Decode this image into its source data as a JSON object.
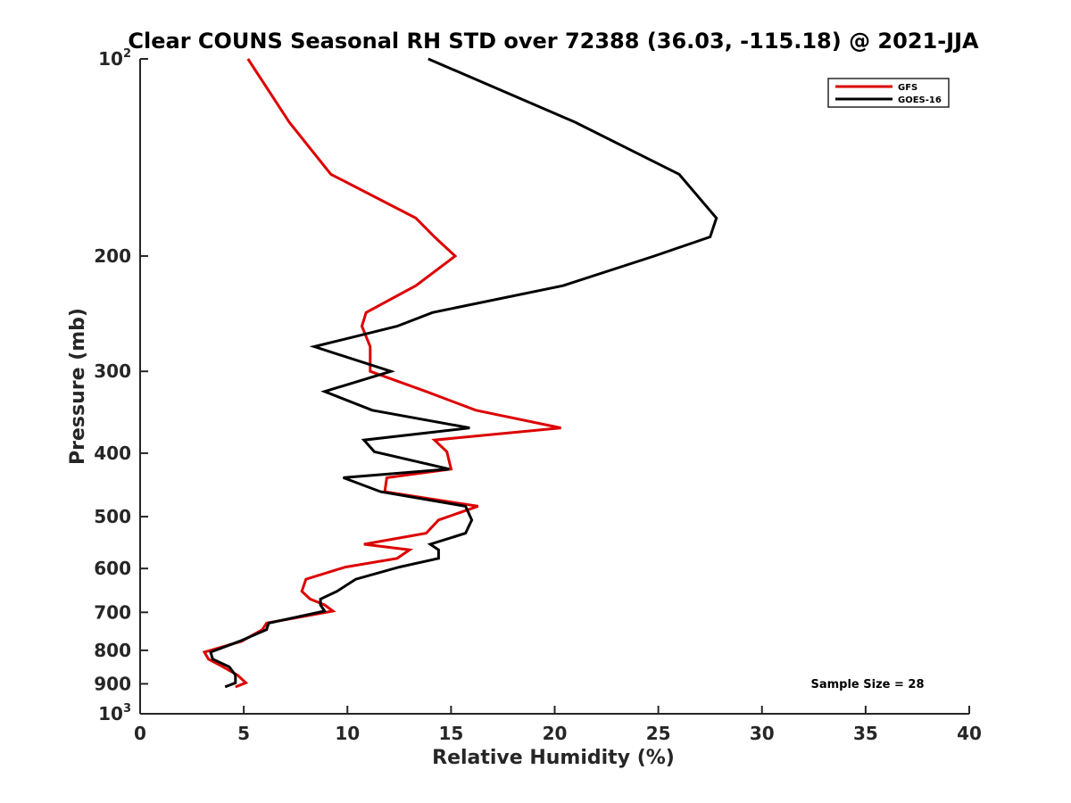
{
  "chart_data": {
    "type": "line",
    "title": "Clear COUNS Seasonal RH STD over 72388 (36.03, -115.18) @ 2021-JJA",
    "xlabel": "Relative Humidity (%)",
    "ylabel": "Pressure (mb)",
    "xlim": [
      0,
      40
    ],
    "ylim": [
      100,
      1000
    ],
    "yscale": "log",
    "y_reversed": true,
    "x_ticks": [
      0,
      5,
      10,
      15,
      20,
      25,
      30,
      35,
      40
    ],
    "x_tick_labels": [
      "0",
      "5",
      "10",
      "15",
      "20",
      "25",
      "30",
      "35",
      "40"
    ],
    "y_ticks": [
      {
        "value": 100,
        "label": "10",
        "sup": "2"
      },
      {
        "value": 200,
        "label": "200",
        "sup": ""
      },
      {
        "value": 300,
        "label": "300",
        "sup": ""
      },
      {
        "value": 400,
        "label": "400",
        "sup": ""
      },
      {
        "value": 500,
        "label": "500",
        "sup": ""
      },
      {
        "value": 600,
        "label": "600",
        "sup": ""
      },
      {
        "value": 700,
        "label": "700",
        "sup": ""
      },
      {
        "value": 800,
        "label": "800",
        "sup": ""
      },
      {
        "value": 900,
        "label": "900",
        "sup": ""
      },
      {
        "value": 1000,
        "label": "10",
        "sup": "3"
      }
    ],
    "legend_position": "top-right",
    "annotation": "Sample Size = 28",
    "series": [
      {
        "name": "GFS",
        "color": "#dd0000",
        "points": [
          [
            5.2,
            100
          ],
          [
            7.2,
            125
          ],
          [
            9.2,
            150
          ],
          [
            13.3,
            175
          ],
          [
            14.2,
            187
          ],
          [
            15.2,
            200
          ],
          [
            13.3,
            222
          ],
          [
            10.9,
            244
          ],
          [
            10.7,
            256
          ],
          [
            11.1,
            275
          ],
          [
            11.1,
            300
          ],
          [
            13.8,
            322
          ],
          [
            16.2,
            344
          ],
          [
            20.3,
            366
          ],
          [
            14.2,
            382
          ],
          [
            14.8,
            398
          ],
          [
            15.0,
            423
          ],
          [
            11.9,
            436
          ],
          [
            11.8,
            458
          ],
          [
            16.3,
            482
          ],
          [
            14.4,
            506
          ],
          [
            13.8,
            530
          ],
          [
            10.8,
            551
          ],
          [
            13.0,
            562
          ],
          [
            12.4,
            579
          ],
          [
            9.9,
            597
          ],
          [
            8.0,
            623
          ],
          [
            7.8,
            650
          ],
          [
            8.2,
            668
          ],
          [
            8.9,
            682
          ],
          [
            9.3,
            697
          ],
          [
            6.1,
            727
          ],
          [
            5.9,
            744
          ],
          [
            4.9,
            775
          ],
          [
            3.1,
            805
          ],
          [
            3.3,
            825
          ],
          [
            4.0,
            848
          ],
          [
            4.7,
            873
          ],
          [
            5.1,
            897
          ],
          [
            4.6,
            910
          ]
        ]
      },
      {
        "name": "GOES-16",
        "color": "#000000",
        "points": [
          [
            13.9,
            100
          ],
          [
            21.0,
            125
          ],
          [
            26.0,
            150
          ],
          [
            27.8,
            175
          ],
          [
            27.5,
            187
          ],
          [
            24.8,
            200
          ],
          [
            20.4,
            222
          ],
          [
            14.1,
            244
          ],
          [
            12.4,
            256
          ],
          [
            8.4,
            275
          ],
          [
            12.1,
            300
          ],
          [
            8.9,
            322
          ],
          [
            11.2,
            344
          ],
          [
            15.9,
            366
          ],
          [
            10.8,
            382
          ],
          [
            11.3,
            398
          ],
          [
            14.9,
            423
          ],
          [
            9.8,
            436
          ],
          [
            11.6,
            458
          ],
          [
            15.7,
            482
          ],
          [
            16.0,
            506
          ],
          [
            15.7,
            530
          ],
          [
            14.0,
            551
          ],
          [
            14.4,
            562
          ],
          [
            14.4,
            579
          ],
          [
            12.5,
            597
          ],
          [
            10.4,
            623
          ],
          [
            9.5,
            650
          ],
          [
            8.7,
            668
          ],
          [
            8.7,
            682
          ],
          [
            8.9,
            697
          ],
          [
            6.2,
            727
          ],
          [
            6.1,
            744
          ],
          [
            4.8,
            775
          ],
          [
            3.4,
            805
          ],
          [
            3.5,
            825
          ],
          [
            4.3,
            848
          ],
          [
            4.6,
            873
          ],
          [
            4.6,
            897
          ],
          [
            4.1,
            910
          ]
        ]
      }
    ]
  }
}
